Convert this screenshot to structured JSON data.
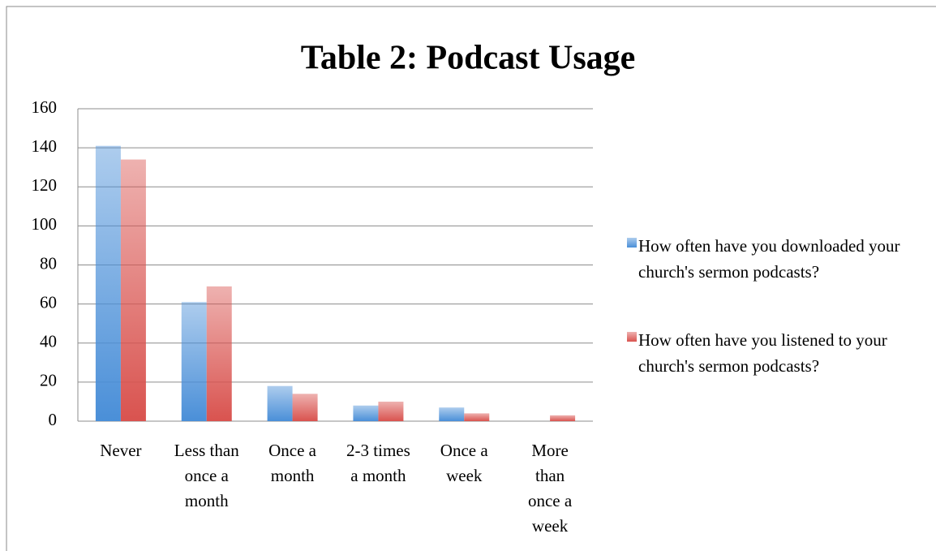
{
  "chart_data": {
    "type": "bar",
    "title": "Table 2: Podcast Usage",
    "categories": [
      "Never",
      "Less than once a month",
      "Once a month",
      "2-3 times a month",
      "Once a week",
      "More than once a week"
    ],
    "series": [
      {
        "name": "How often have you downloaded your church's sermon podcasts?",
        "color": "#4a8fd8",
        "values": [
          141,
          61,
          18,
          8,
          7,
          0
        ]
      },
      {
        "name": "How often have you listened to your church's sermon podcasts?",
        "color": "#d9534f",
        "values": [
          134,
          69,
          14,
          10,
          4,
          3
        ]
      }
    ],
    "ylim": [
      0,
      160
    ],
    "yticks": [
      0,
      20,
      40,
      60,
      80,
      100,
      120,
      140,
      160
    ],
    "grid": true,
    "legend": "right"
  }
}
